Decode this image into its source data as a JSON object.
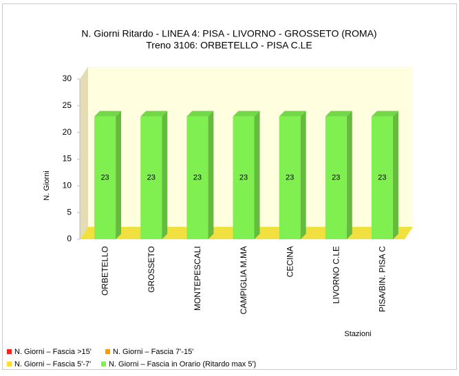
{
  "chart_data": {
    "type": "bar",
    "title": "N. Giorni Ritardo - LINEA 4: PISA - LIVORNO - GROSSETO (ROMA)",
    "subtitle": "Treno 3106: ORBETELLO - PISA C.LE",
    "x_label": "Stazioni",
    "y_label": "N. Giorni",
    "categories": [
      "ORBETELLO",
      "GROSSETO",
      "MONTEPESCALI",
      "CAMPIGLIA M.MA",
      "CECINA",
      "LIVORNO C.LE",
      "PISA/BIN. PISA C"
    ],
    "stacked": true,
    "series": [
      {
        "name": "N. Giorni – Fascia >15'",
        "color": "#ff2020",
        "values": [
          0,
          0,
          0,
          0,
          0,
          0,
          0
        ]
      },
      {
        "name": "N. Giorni – Fascia 7'-15'",
        "color": "#ff9900",
        "values": [
          0,
          0,
          0,
          0,
          0,
          0,
          0
        ]
      },
      {
        "name": "N. Giorni – Fascia 5'-7'",
        "color": "#ffdd33",
        "values": [
          0,
          0,
          0,
          0,
          0,
          0,
          0
        ]
      },
      {
        "name": "N. Giorni – Fascia in Orario (Ritardo max 5')",
        "color": "#80f050",
        "values": [
          23,
          23,
          23,
          23,
          23,
          23,
          23
        ]
      }
    ],
    "ylim": [
      0,
      30
    ],
    "yticks": [
      0,
      5,
      10,
      15,
      20,
      25,
      30
    ],
    "legend": "bottom-left"
  }
}
